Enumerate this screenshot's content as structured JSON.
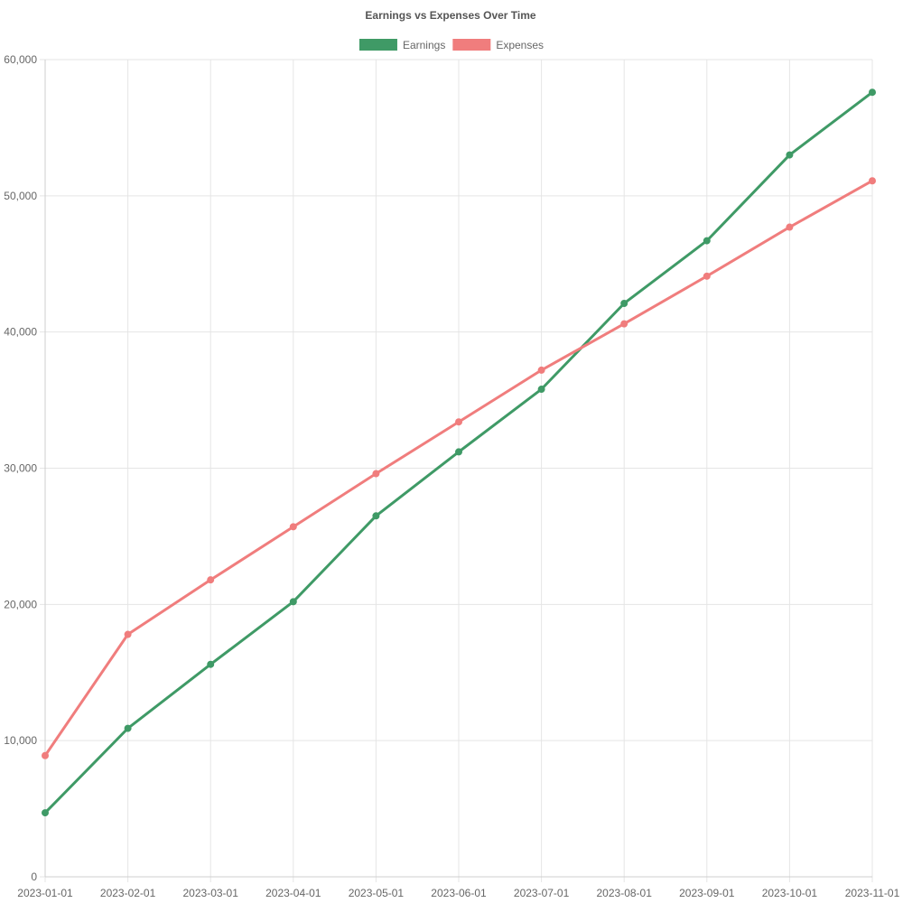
{
  "chart_data": {
    "type": "line",
    "title": "Earnings vs Expenses Over Time",
    "xlabel": "",
    "ylabel": "",
    "x": [
      "2023-01-01",
      "2023-02-01",
      "2023-03-01",
      "2023-04-01",
      "2023-05-01",
      "2023-06-01",
      "2023-07-01",
      "2023-08-01",
      "2023-09-01",
      "2023-10-01",
      "2023-11-01"
    ],
    "ylim": [
      0,
      60000
    ],
    "yticks": [
      0,
      10000,
      20000,
      30000,
      40000,
      50000,
      60000
    ],
    "ytick_labels": [
      "0",
      "10,000",
      "20,000",
      "30,000",
      "40,000",
      "50,000",
      "60,000"
    ],
    "grid": true,
    "legend_position": "top-center",
    "series": [
      {
        "name": "Earnings",
        "color": "#3f9a66",
        "values": [
          4700,
          10900,
          15600,
          20200,
          26500,
          31200,
          35800,
          42100,
          46700,
          53000,
          57600
        ]
      },
      {
        "name": "Expenses",
        "color": "#f07d7d",
        "values": [
          8900,
          17800,
          21800,
          25700,
          29600,
          33400,
          37200,
          40600,
          44100,
          47700,
          51100
        ]
      }
    ]
  }
}
